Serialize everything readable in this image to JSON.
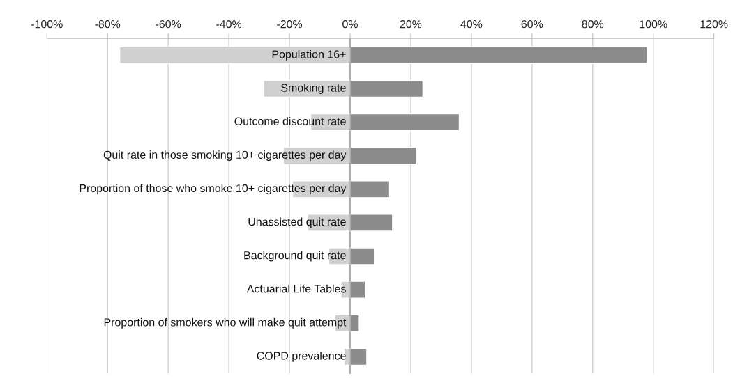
{
  "chart_data": {
    "type": "bar",
    "orientation": "horizontal",
    "stacked": true,
    "categories": [
      "Population 16+",
      "Smoking rate",
      "Outcome discount rate",
      "Quit rate in those smoking 10+ cigarettes per day",
      "Proportion of those who smoke 10+ cigarettes per day",
      "Unassisted quit rate",
      "Background quit rate",
      "Actuarial Life Tables",
      "Proportion of smokers who will make quit attempt",
      "COPD prevalence"
    ],
    "series": [
      {
        "color": "#d0d0d0",
        "values": [
          -76,
          -28.5,
          -13,
          -22,
          -19,
          -14,
          -7,
          -3,
          -5,
          -2
        ]
      },
      {
        "color": "#8c8c8c",
        "values": [
          98,
          24,
          36,
          22,
          13,
          14,
          8,
          5,
          3,
          5.5
        ]
      }
    ],
    "xlim": [
      -100,
      120
    ],
    "xticks": [
      {
        "value": -100,
        "label": "-100%"
      },
      {
        "value": -80,
        "label": "-80%"
      },
      {
        "value": -60,
        "label": "-60%"
      },
      {
        "value": -40,
        "label": "-40%"
      },
      {
        "value": -20,
        "label": "-20%"
      },
      {
        "value": 0,
        "label": "0%"
      },
      {
        "value": 20,
        "label": "20%"
      },
      {
        "value": 40,
        "label": "40%"
      },
      {
        "value": 60,
        "label": "60%"
      },
      {
        "value": 80,
        "label": "80%"
      },
      {
        "value": 100,
        "label": "100%"
      },
      {
        "value": 120,
        "label": "120%"
      }
    ],
    "grid": "x",
    "legend": false
  }
}
